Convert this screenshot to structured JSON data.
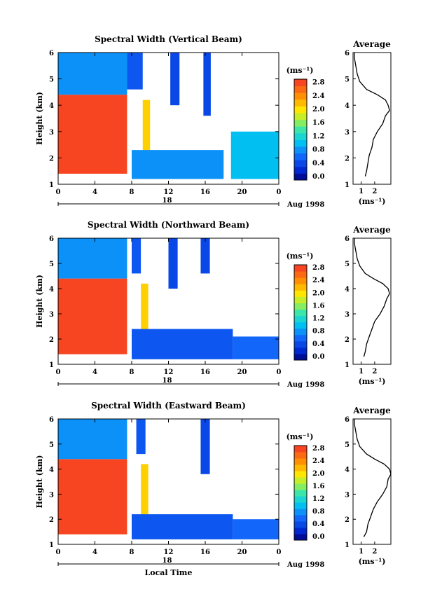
{
  "figure": {
    "panel_titles": [
      "Spectral Width (Vertical Beam)",
      "Spectral Width (Northward Beam)",
      "Spectral Width (Eastward Beam)"
    ],
    "ylabel": "Height (km)",
    "x_axis_label": "Local Time",
    "date_label": "Aug 1998",
    "day_label": "18",
    "average_title": "Average",
    "colorbar_unit": "(ms⁻¹)",
    "average_xlabel": "(ms⁻¹)"
  },
  "chart_data": [
    {
      "type": "heatmap",
      "title": "Spectral Width (Vertical Beam)",
      "ylabel": "Height (km)",
      "xlim": [
        0,
        24
      ],
      "ylim": [
        1,
        6
      ],
      "xticks": [
        "0",
        "4",
        "8",
        "12",
        "16",
        "20",
        "0"
      ],
      "yticks": [
        "1",
        "2",
        "3",
        "4",
        "5",
        "6"
      ],
      "colorbar": {
        "unit": "(ms⁻¹)",
        "range": [
          0,
          3.0
        ],
        "ticks": [
          "0.0",
          "0.4",
          "0.8",
          "1.2",
          "1.6",
          "2.0",
          "2.4",
          "2.8"
        ]
      },
      "regions": [
        {
          "x": [
            0,
            7.5
          ],
          "y": [
            1.4,
            4.4
          ],
          "level": 2.9
        },
        {
          "x": [
            0,
            7.5
          ],
          "y": [
            4.4,
            6.0
          ],
          "level": 0.9
        },
        {
          "x": [
            9.2,
            10.0
          ],
          "y": [
            1.3,
            4.2
          ],
          "level": 2.2
        },
        {
          "x": [
            8.0,
            18.0
          ],
          "y": [
            1.2,
            2.3
          ],
          "level": 0.9
        },
        {
          "x": [
            18.8,
            24.0
          ],
          "y": [
            1.2,
            3.0
          ],
          "level": 1.1
        },
        {
          "x": [
            7.5,
            9.2
          ],
          "y": [
            4.6,
            6.0
          ],
          "level": 0.6
        },
        {
          "x": [
            12.2,
            13.2
          ],
          "y": [
            4.0,
            6.0
          ],
          "level": 0.5
        },
        {
          "x": [
            15.8,
            16.6
          ],
          "y": [
            3.6,
            6.0
          ],
          "level": 0.5
        }
      ],
      "profile": {
        "title": "Average",
        "xlabel": "(ms⁻¹)",
        "xlim": [
          0.4,
          3.2
        ],
        "xticks": [
          "1",
          "2"
        ],
        "heights": [
          1.3,
          1.5,
          1.8,
          2.1,
          2.4,
          2.7,
          3.0,
          3.3,
          3.6,
          3.8,
          4.0,
          4.2,
          4.4,
          4.6,
          4.9,
          5.2,
          5.5,
          5.8,
          6.0
        ],
        "values": [
          1.3,
          1.4,
          1.5,
          1.6,
          1.8,
          1.9,
          2.2,
          2.6,
          2.8,
          3.1,
          3.0,
          2.8,
          2.2,
          1.4,
          0.9,
          0.7,
          0.6,
          0.5,
          0.5
        ]
      }
    },
    {
      "type": "heatmap",
      "title": "Spectral Width (Northward Beam)",
      "ylabel": "Height (km)",
      "xlim": [
        0,
        24
      ],
      "ylim": [
        1,
        6
      ],
      "xticks": [
        "0",
        "4",
        "8",
        "12",
        "16",
        "20",
        "0"
      ],
      "yticks": [
        "1",
        "2",
        "3",
        "4",
        "5",
        "6"
      ],
      "colorbar": {
        "unit": "(ms⁻¹)",
        "range": [
          0,
          3.0
        ],
        "ticks": [
          "0.0",
          "0.4",
          "0.8",
          "1.2",
          "1.6",
          "2.0",
          "2.4",
          "2.8"
        ]
      },
      "regions": [
        {
          "x": [
            0,
            7.5
          ],
          "y": [
            1.4,
            4.4
          ],
          "level": 2.9
        },
        {
          "x": [
            0,
            7.5
          ],
          "y": [
            4.4,
            6.0
          ],
          "level": 0.9
        },
        {
          "x": [
            9.0,
            9.8
          ],
          "y": [
            1.3,
            4.2
          ],
          "level": 2.2
        },
        {
          "x": [
            8.0,
            19.0
          ],
          "y": [
            1.2,
            2.4
          ],
          "level": 0.6
        },
        {
          "x": [
            19.0,
            24.0
          ],
          "y": [
            1.2,
            2.1
          ],
          "level": 0.7
        },
        {
          "x": [
            8.0,
            9.0
          ],
          "y": [
            4.6,
            6.0
          ],
          "level": 0.6
        },
        {
          "x": [
            12.0,
            13.0
          ],
          "y": [
            4.0,
            6.0
          ],
          "level": 0.5
        },
        {
          "x": [
            15.5,
            16.5
          ],
          "y": [
            4.6,
            6.0
          ],
          "level": 0.5
        }
      ],
      "profile": {
        "title": "Average",
        "xlabel": "(ms⁻¹)",
        "xlim": [
          0.4,
          3.2
        ],
        "xticks": [
          "1",
          "2"
        ],
        "heights": [
          1.3,
          1.5,
          1.8,
          2.1,
          2.4,
          2.7,
          3.0,
          3.3,
          3.6,
          3.8,
          4.0,
          4.2,
          4.4,
          4.6,
          4.9,
          5.2,
          5.5,
          5.8,
          6.0
        ],
        "values": [
          1.2,
          1.3,
          1.4,
          1.6,
          1.8,
          2.0,
          2.4,
          2.7,
          2.9,
          3.1,
          3.0,
          2.6,
          1.9,
          1.3,
          0.9,
          0.7,
          0.6,
          0.5,
          0.5
        ]
      }
    },
    {
      "type": "heatmap",
      "title": "Spectral Width (Eastward Beam)",
      "ylabel": "Height (km)",
      "xlim": [
        0,
        24
      ],
      "ylim": [
        1,
        6
      ],
      "xticks": [
        "0",
        "4",
        "8",
        "12",
        "16",
        "20",
        "0"
      ],
      "yticks": [
        "1",
        "2",
        "3",
        "4",
        "5",
        "6"
      ],
      "colorbar": {
        "unit": "(ms⁻¹)",
        "range": [
          0,
          3.0
        ],
        "ticks": [
          "0.0",
          "0.4",
          "0.8",
          "1.2",
          "1.6",
          "2.0",
          "2.4",
          "2.8"
        ]
      },
      "regions": [
        {
          "x": [
            0,
            7.5
          ],
          "y": [
            1.4,
            4.4
          ],
          "level": 2.9
        },
        {
          "x": [
            0,
            7.5
          ],
          "y": [
            4.4,
            6.0
          ],
          "level": 0.9
        },
        {
          "x": [
            9.0,
            9.8
          ],
          "y": [
            1.3,
            4.2
          ],
          "level": 2.2
        },
        {
          "x": [
            8.0,
            19.0
          ],
          "y": [
            1.2,
            2.2
          ],
          "level": 0.6
        },
        {
          "x": [
            19.0,
            24.0
          ],
          "y": [
            1.2,
            2.0
          ],
          "level": 0.7
        },
        {
          "x": [
            8.5,
            9.5
          ],
          "y": [
            4.6,
            6.0
          ],
          "level": 0.6
        },
        {
          "x": [
            15.5,
            16.5
          ],
          "y": [
            3.8,
            6.0
          ],
          "level": 0.5
        }
      ],
      "profile": {
        "title": "Average",
        "xlabel": "(ms⁻¹)",
        "xlim": [
          0.4,
          3.2
        ],
        "xticks": [
          "1",
          "2"
        ],
        "heights": [
          1.3,
          1.5,
          1.8,
          2.1,
          2.4,
          2.7,
          3.0,
          3.3,
          3.6,
          3.8,
          4.0,
          4.2,
          4.4,
          4.6,
          4.9,
          5.2,
          5.5,
          5.8,
          6.0
        ],
        "values": [
          1.2,
          1.4,
          1.5,
          1.7,
          1.9,
          2.2,
          2.6,
          2.9,
          3.0,
          3.2,
          3.1,
          2.7,
          2.0,
          1.4,
          0.9,
          0.7,
          0.6,
          0.5,
          0.5
        ]
      }
    }
  ]
}
